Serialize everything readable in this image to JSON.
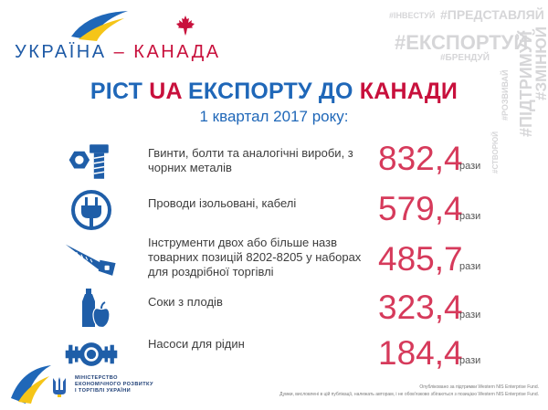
{
  "logo": {
    "country1": "УКРАЇНА",
    "dash": "–",
    "country2": "КАНАДА"
  },
  "hashtags": {
    "invest": "#ІНВЕСТУЙ",
    "represent": "#ПРЕДСТАВЛЯЙ",
    "export": "#ЕКСПОРТУЙ",
    "brand": "#БРЕНДУЙ",
    "support": "#ПІДТРИМУЙ",
    "change": "#ЗМІНЮЙ",
    "create": "#СТВОРЮЙ",
    "develop": "#РОЗВИВАЙ"
  },
  "title": {
    "part1": "РІСТ ",
    "part2": "UA",
    "part3": " ЕКСПОРТУ ДО ",
    "part4": "КАНАДИ"
  },
  "subtitle": "1 квартал 2017 року:",
  "rows": [
    {
      "icon": "bolt-nut-icon",
      "label": "Гвинти, болти та аналогічні вироби, з чорних металів",
      "value": "832,4",
      "unit": "рази"
    },
    {
      "icon": "plug-icon",
      "label": "Проводи ізольовані, кабелі",
      "value": "579,4",
      "unit": "рази"
    },
    {
      "icon": "saw-icon",
      "label": "Інструменти двох або більше назв товарних позицій 8202-8205 у наборах для роздрібної торгівлі",
      "value": "485,7",
      "unit": "рази"
    },
    {
      "icon": "juice-apple-icon",
      "label": "Соки з плодів",
      "value": "323,4",
      "unit": "рази"
    },
    {
      "icon": "pump-icon",
      "label": "Насоси для рідин",
      "value": "184,4",
      "unit": "рази"
    }
  ],
  "footer": {
    "ministry_line1": "МІНІСТЕРСТВО",
    "ministry_line2": "ЕКОНОМІЧНОГО РОЗВИТКУ",
    "ministry_line3": "І ТОРГІВЛІ УКРАЇНИ",
    "note_line1": "Опубліковано за підтримки Western NIS Enterprise Fund.",
    "note_line2": "Думки, висловлені в цій публікації, належать авторам, і не обов'язково збігаються з позицією Western NIS Enterprise Fund."
  },
  "colors": {
    "blue": "#1f67b8",
    "red": "#c8103c",
    "value": "#d63a5b",
    "icon": "#1f5ea8",
    "hashtag": "#d6d6d8",
    "yellow": "#f5c518"
  }
}
